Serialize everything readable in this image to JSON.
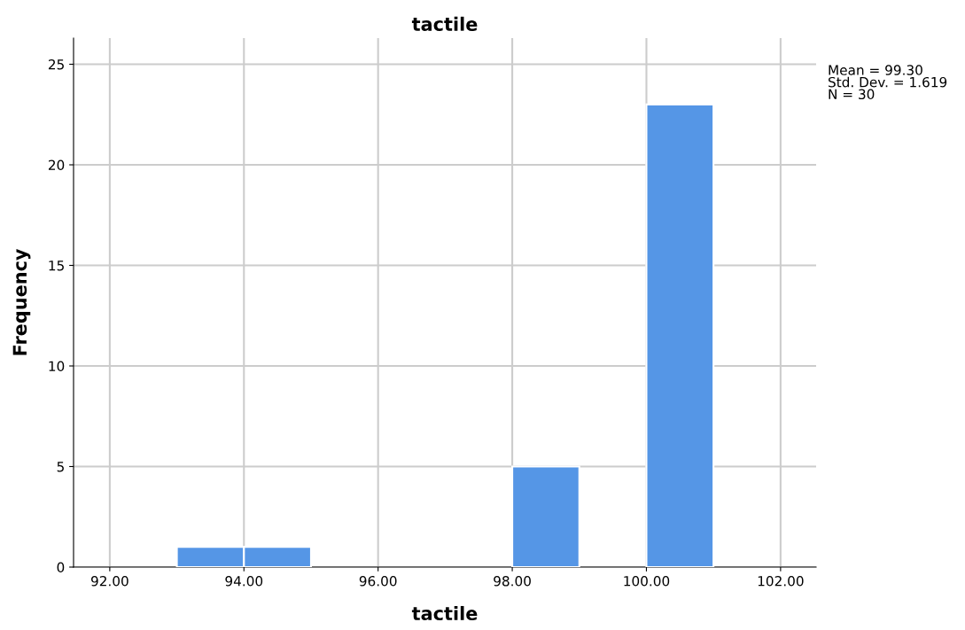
{
  "chart_data": {
    "type": "histogram",
    "title": "tactile",
    "xlabel": "tactile",
    "ylabel": "Frequency",
    "bins": [
      93,
      94,
      95,
      96,
      97,
      98,
      99,
      100,
      101
    ],
    "values": [
      1,
      1,
      0,
      0,
      0,
      5,
      0,
      23
    ],
    "color": "#5596e6",
    "xlim": [
      91.46,
      102.53
    ],
    "ylim": [
      0,
      26.3
    ],
    "xticks": [
      {
        "value": 92,
        "label": "92.00"
      },
      {
        "value": 94,
        "label": "94.00"
      },
      {
        "value": 96,
        "label": "96.00"
      },
      {
        "value": 98,
        "label": "98.00"
      },
      {
        "value": 100,
        "label": "100.00"
      },
      {
        "value": 102,
        "label": "102.00"
      }
    ],
    "yticks": [
      0,
      5,
      10,
      15,
      20,
      25
    ],
    "grid": true,
    "annotations": [
      "Mean = 99.30\nStd. Dev. = 1.619\nN = 30"
    ]
  }
}
